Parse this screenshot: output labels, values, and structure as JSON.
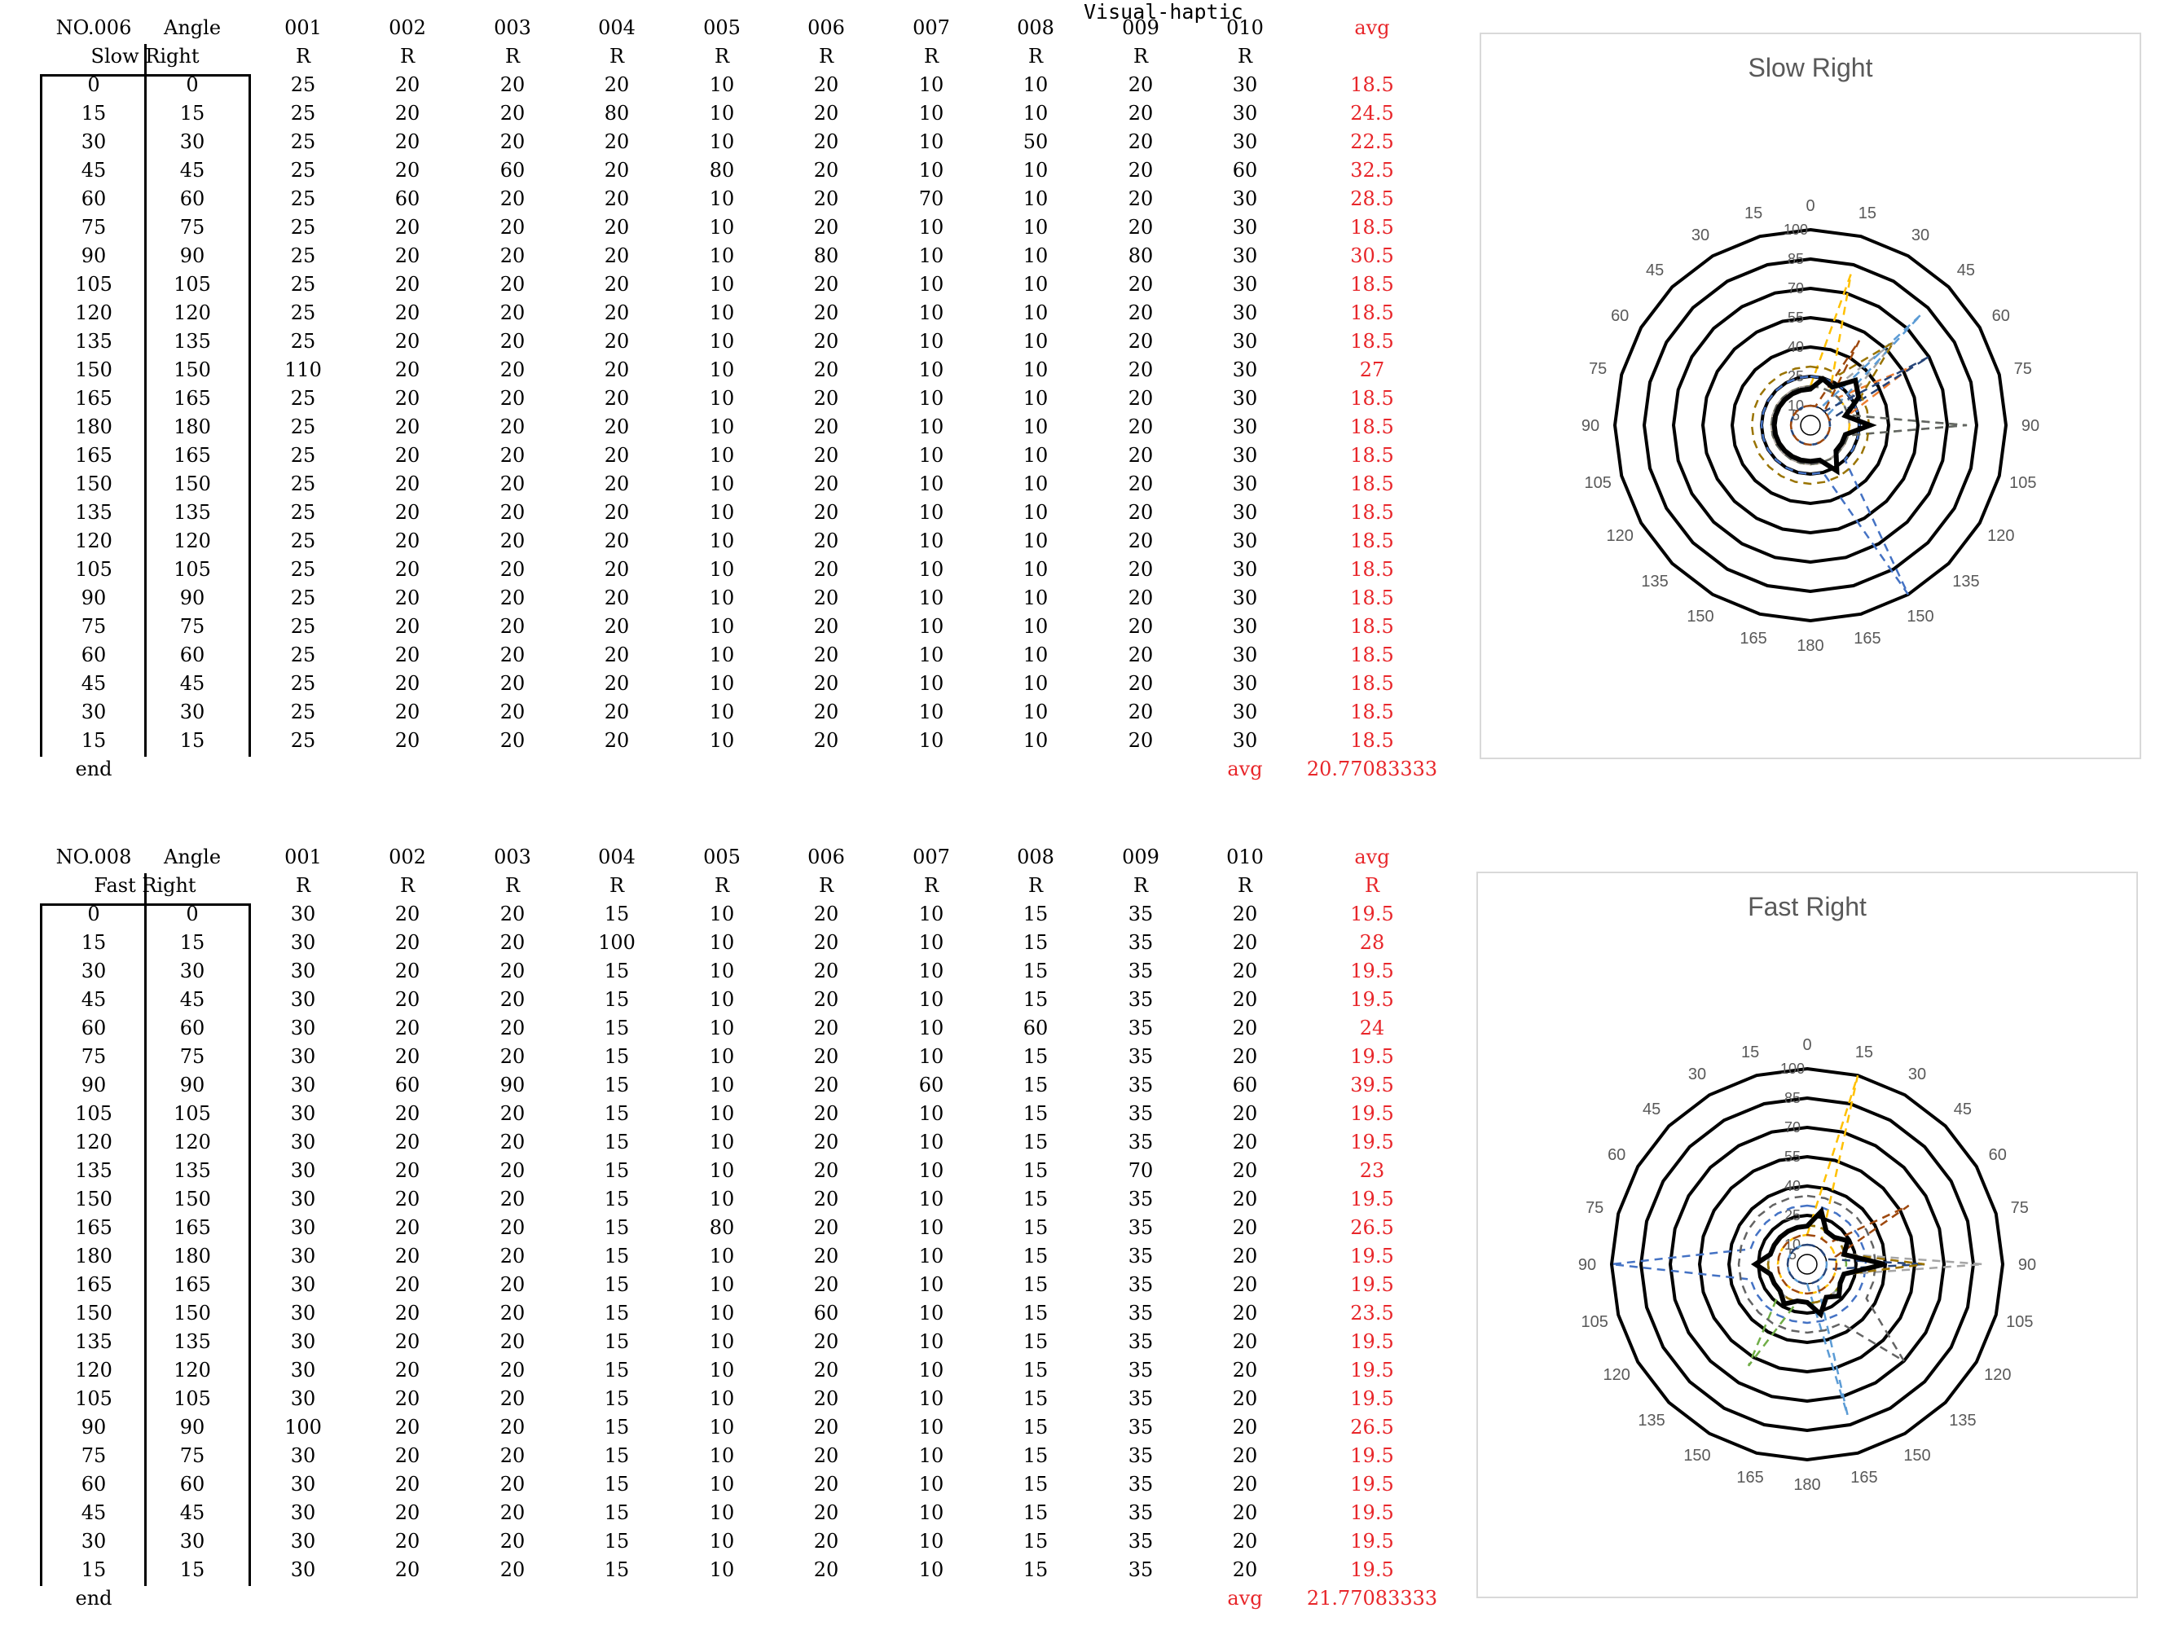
{
  "title": "Visual-haptic",
  "blocks": [
    {
      "id": "NO.006",
      "condition": "Slow Right",
      "headers": [
        "NO.006",
        "Angle",
        "001",
        "002",
        "003",
        "004",
        "005",
        "006",
        "007",
        "008",
        "009",
        "010",
        "avg"
      ],
      "subheaders": [
        "R",
        "R",
        "R",
        "R",
        "R",
        "R",
        "R",
        "R",
        "R",
        "R"
      ],
      "avg_sub": "",
      "angles": [
        "0",
        "15",
        "30",
        "45",
        "60",
        "75",
        "90",
        "105",
        "120",
        "135",
        "150",
        "165",
        "180",
        "165",
        "150",
        "135",
        "120",
        "105",
        "90",
        "75",
        "60",
        "45",
        "30",
        "15"
      ],
      "rows": [
        [
          "25",
          "20",
          "20",
          "20",
          "10",
          "20",
          "10",
          "10",
          "20",
          "30",
          "18.5"
        ],
        [
          "25",
          "20",
          "20",
          "80",
          "10",
          "20",
          "10",
          "10",
          "20",
          "30",
          "24.5"
        ],
        [
          "25",
          "20",
          "20",
          "20",
          "10",
          "20",
          "10",
          "50",
          "20",
          "30",
          "22.5"
        ],
        [
          "25",
          "20",
          "60",
          "20",
          "80",
          "20",
          "10",
          "10",
          "20",
          "60",
          "32.5"
        ],
        [
          "25",
          "60",
          "20",
          "20",
          "10",
          "20",
          "70",
          "10",
          "20",
          "30",
          "28.5"
        ],
        [
          "25",
          "20",
          "20",
          "20",
          "10",
          "20",
          "10",
          "10",
          "20",
          "30",
          "18.5"
        ],
        [
          "25",
          "20",
          "20",
          "20",
          "10",
          "80",
          "10",
          "10",
          "80",
          "30",
          "30.5"
        ],
        [
          "25",
          "20",
          "20",
          "20",
          "10",
          "20",
          "10",
          "10",
          "20",
          "30",
          "18.5"
        ],
        [
          "25",
          "20",
          "20",
          "20",
          "10",
          "20",
          "10",
          "10",
          "20",
          "30",
          "18.5"
        ],
        [
          "25",
          "20",
          "20",
          "20",
          "10",
          "20",
          "10",
          "10",
          "20",
          "30",
          "18.5"
        ],
        [
          "110",
          "20",
          "20",
          "20",
          "10",
          "20",
          "10",
          "10",
          "20",
          "30",
          "27"
        ],
        [
          "25",
          "20",
          "20",
          "20",
          "10",
          "20",
          "10",
          "10",
          "20",
          "30",
          "18.5"
        ],
        [
          "25",
          "20",
          "20",
          "20",
          "10",
          "20",
          "10",
          "10",
          "20",
          "30",
          "18.5"
        ],
        [
          "25",
          "20",
          "20",
          "20",
          "10",
          "20",
          "10",
          "10",
          "20",
          "30",
          "18.5"
        ],
        [
          "25",
          "20",
          "20",
          "20",
          "10",
          "20",
          "10",
          "10",
          "20",
          "30",
          "18.5"
        ],
        [
          "25",
          "20",
          "20",
          "20",
          "10",
          "20",
          "10",
          "10",
          "20",
          "30",
          "18.5"
        ],
        [
          "25",
          "20",
          "20",
          "20",
          "10",
          "20",
          "10",
          "10",
          "20",
          "30",
          "18.5"
        ],
        [
          "25",
          "20",
          "20",
          "20",
          "10",
          "20",
          "10",
          "10",
          "20",
          "30",
          "18.5"
        ],
        [
          "25",
          "20",
          "20",
          "20",
          "10",
          "20",
          "10",
          "10",
          "20",
          "30",
          "18.5"
        ],
        [
          "25",
          "20",
          "20",
          "20",
          "10",
          "20",
          "10",
          "10",
          "20",
          "30",
          "18.5"
        ],
        [
          "25",
          "20",
          "20",
          "20",
          "10",
          "20",
          "10",
          "10",
          "20",
          "30",
          "18.5"
        ],
        [
          "25",
          "20",
          "20",
          "20",
          "10",
          "20",
          "10",
          "10",
          "20",
          "30",
          "18.5"
        ],
        [
          "25",
          "20",
          "20",
          "20",
          "10",
          "20",
          "10",
          "10",
          "20",
          "30",
          "18.5"
        ],
        [
          "25",
          "20",
          "20",
          "20",
          "10",
          "20",
          "10",
          "10",
          "20",
          "30",
          "18.5"
        ]
      ],
      "end_label": "end",
      "avg_label": "avg",
      "overall_avg": "20.77083333"
    },
    {
      "id": "NO.008",
      "condition": "Fast Right",
      "headers": [
        "NO.008",
        "Angle",
        "001",
        "002",
        "003",
        "004",
        "005",
        "006",
        "007",
        "008",
        "009",
        "010",
        "avg"
      ],
      "subheaders": [
        "R",
        "R",
        "R",
        "R",
        "R",
        "R",
        "R",
        "R",
        "R",
        "R"
      ],
      "avg_sub": "R",
      "angles": [
        "0",
        "15",
        "30",
        "45",
        "60",
        "75",
        "90",
        "105",
        "120",
        "135",
        "150",
        "165",
        "180",
        "165",
        "150",
        "135",
        "120",
        "105",
        "90",
        "75",
        "60",
        "45",
        "30",
        "15"
      ],
      "rows": [
        [
          "30",
          "20",
          "20",
          "15",
          "10",
          "20",
          "10",
          "15",
          "35",
          "20",
          "19.5"
        ],
        [
          "30",
          "20",
          "20",
          "100",
          "10",
          "20",
          "10",
          "15",
          "35",
          "20",
          "28"
        ],
        [
          "30",
          "20",
          "20",
          "15",
          "10",
          "20",
          "10",
          "15",
          "35",
          "20",
          "19.5"
        ],
        [
          "30",
          "20",
          "20",
          "15",
          "10",
          "20",
          "10",
          "15",
          "35",
          "20",
          "19.5"
        ],
        [
          "30",
          "20",
          "20",
          "15",
          "10",
          "20",
          "10",
          "60",
          "35",
          "20",
          "24"
        ],
        [
          "30",
          "20",
          "20",
          "15",
          "10",
          "20",
          "10",
          "15",
          "35",
          "20",
          "19.5"
        ],
        [
          "30",
          "60",
          "90",
          "15",
          "10",
          "20",
          "60",
          "15",
          "35",
          "60",
          "39.5"
        ],
        [
          "30",
          "20",
          "20",
          "15",
          "10",
          "20",
          "10",
          "15",
          "35",
          "20",
          "19.5"
        ],
        [
          "30",
          "20",
          "20",
          "15",
          "10",
          "20",
          "10",
          "15",
          "35",
          "20",
          "19.5"
        ],
        [
          "30",
          "20",
          "20",
          "15",
          "10",
          "20",
          "10",
          "15",
          "70",
          "20",
          "23"
        ],
        [
          "30",
          "20",
          "20",
          "15",
          "10",
          "20",
          "10",
          "15",
          "35",
          "20",
          "19.5"
        ],
        [
          "30",
          "20",
          "20",
          "15",
          "80",
          "20",
          "10",
          "15",
          "35",
          "20",
          "26.5"
        ],
        [
          "30",
          "20",
          "20",
          "15",
          "10",
          "20",
          "10",
          "15",
          "35",
          "20",
          "19.5"
        ],
        [
          "30",
          "20",
          "20",
          "15",
          "10",
          "20",
          "10",
          "15",
          "35",
          "20",
          "19.5"
        ],
        [
          "30",
          "20",
          "20",
          "15",
          "10",
          "60",
          "10",
          "15",
          "35",
          "20",
          "23.5"
        ],
        [
          "30",
          "20",
          "20",
          "15",
          "10",
          "20",
          "10",
          "15",
          "35",
          "20",
          "19.5"
        ],
        [
          "30",
          "20",
          "20",
          "15",
          "10",
          "20",
          "10",
          "15",
          "35",
          "20",
          "19.5"
        ],
        [
          "30",
          "20",
          "20",
          "15",
          "10",
          "20",
          "10",
          "15",
          "35",
          "20",
          "19.5"
        ],
        [
          "100",
          "20",
          "20",
          "15",
          "10",
          "20",
          "10",
          "15",
          "35",
          "20",
          "26.5"
        ],
        [
          "30",
          "20",
          "20",
          "15",
          "10",
          "20",
          "10",
          "15",
          "35",
          "20",
          "19.5"
        ],
        [
          "30",
          "20",
          "20",
          "15",
          "10",
          "20",
          "10",
          "15",
          "35",
          "20",
          "19.5"
        ],
        [
          "30",
          "20",
          "20",
          "15",
          "10",
          "20",
          "10",
          "15",
          "35",
          "20",
          "19.5"
        ],
        [
          "30",
          "20",
          "20",
          "15",
          "10",
          "20",
          "10",
          "15",
          "35",
          "20",
          "19.5"
        ],
        [
          "30",
          "20",
          "20",
          "15",
          "10",
          "20",
          "10",
          "15",
          "35",
          "20",
          "19.5"
        ]
      ],
      "end_label": "end",
      "avg_label": "avg",
      "overall_avg": "21.77083333"
    }
  ],
  "chart_data": [
    {
      "type": "radar",
      "title": "Slow Right",
      "axis_labels": [
        "0",
        "15",
        "30",
        "45",
        "60",
        "75",
        "90",
        "105",
        "120",
        "135",
        "150",
        "165",
        "180",
        "165",
        "150",
        "135",
        "120",
        "105",
        "90",
        "75",
        "60",
        "45",
        "30",
        "15"
      ],
      "radial_ticks": [
        "5",
        "10",
        "25",
        "40",
        "55",
        "70",
        "85",
        "100"
      ],
      "radial_range": [
        0,
        100
      ],
      "series_colors": [
        "#4472c4",
        "#ed7d31",
        "#a5a5a5",
        "#ffc000",
        "#5b9bd5",
        "#70ad47",
        "#264478",
        "#9e480e",
        "#636363",
        "#997300"
      ],
      "avg_color": "#000000"
    },
    {
      "type": "radar",
      "title": "Fast Right",
      "axis_labels": [
        "0",
        "15",
        "30",
        "45",
        "60",
        "75",
        "90",
        "105",
        "120",
        "135",
        "150",
        "165",
        "180",
        "165",
        "150",
        "135",
        "120",
        "105",
        "90",
        "75",
        "60",
        "45",
        "30",
        "15"
      ],
      "radial_ticks": [
        "5",
        "10",
        "25",
        "40",
        "55",
        "70",
        "85",
        "100"
      ],
      "radial_range": [
        0,
        100
      ],
      "series_colors": [
        "#4472c4",
        "#ed7d31",
        "#a5a5a5",
        "#ffc000",
        "#5b9bd5",
        "#70ad47",
        "#264478",
        "#9e480e",
        "#636363",
        "#997300"
      ],
      "avg_color": "#000000"
    }
  ]
}
